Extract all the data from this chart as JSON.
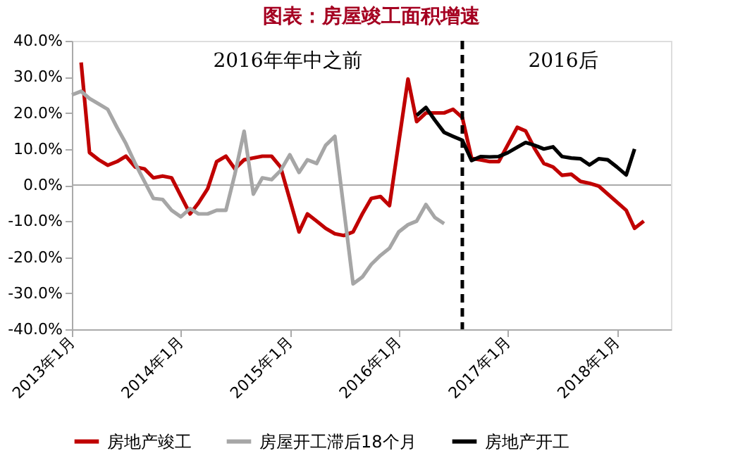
{
  "chart_data": {
    "type": "line",
    "title": "图表：房屋竣工面积增速",
    "xlim": [
      "2013-01",
      "2018-07"
    ],
    "xticks": [
      {
        "value": "2013-01",
        "label": "2013年1月"
      },
      {
        "value": "2014-01",
        "label": "2014年1月"
      },
      {
        "value": "2015-01",
        "label": "2015年1月"
      },
      {
        "value": "2016-01",
        "label": "2016年1月"
      },
      {
        "value": "2017-01",
        "label": "2017年1月"
      },
      {
        "value": "2018-01",
        "label": "2018年1月"
      }
    ],
    "ylim": [
      -40,
      40
    ],
    "yticks": [
      {
        "value": -40,
        "label": "-40.0%"
      },
      {
        "value": -30,
        "label": "-30.0%"
      },
      {
        "value": -20,
        "label": "-20.0%"
      },
      {
        "value": -10,
        "label": "-10.0%"
      },
      {
        "value": 0,
        "label": "0.0%"
      },
      {
        "value": 10,
        "label": "10.0%"
      },
      {
        "value": 20,
        "label": "20.0%"
      },
      {
        "value": 30,
        "label": "30.0%"
      },
      {
        "value": 40,
        "label": "40.0%"
      }
    ],
    "grid": false,
    "legend": "bottom",
    "line_style": "solid",
    "series": [
      {
        "name": "房地产竣工",
        "color": "#c00000",
        "x": [
          "2013-02",
          "2013-03",
          "2013-04",
          "2013-05",
          "2013-06",
          "2013-07",
          "2013-08",
          "2013-09",
          "2013-10",
          "2013-11",
          "2013-12",
          "2014-02",
          "2014-03",
          "2014-04",
          "2014-05",
          "2014-06",
          "2014-07",
          "2014-08",
          "2014-09",
          "2014-10",
          "2014-11",
          "2014-12",
          "2015-02",
          "2015-03",
          "2015-04",
          "2015-05",
          "2015-06",
          "2015-07",
          "2015-08",
          "2015-09",
          "2015-10",
          "2015-11",
          "2015-12",
          "2016-02",
          "2016-03",
          "2016-04",
          "2016-05",
          "2016-06",
          "2016-07",
          "2016-08",
          "2016-09",
          "2016-10",
          "2016-11",
          "2016-12",
          "2017-02",
          "2017-03",
          "2017-04",
          "2017-05",
          "2017-06",
          "2017-07",
          "2017-08",
          "2017-09",
          "2017-10",
          "2017-11",
          "2017-12",
          "2018-02",
          "2018-03",
          "2018-04"
        ],
        "values": [
          34,
          9,
          7,
          5.5,
          6.5,
          8,
          5,
          4.5,
          2,
          2.5,
          2,
          -8,
          -5,
          -1,
          6.5,
          8,
          4.5,
          7,
          7.5,
          8,
          8,
          5,
          -13,
          -8,
          -10,
          -12,
          -13.5,
          -14,
          -13,
          -8,
          -3.7,
          -3.2,
          -5.7,
          29.4,
          17.6,
          20,
          20,
          20,
          21,
          18.7,
          7.4,
          7,
          6.5,
          6.5,
          16,
          15,
          10,
          6,
          5,
          2.7,
          3,
          1,
          0.5,
          -0.3,
          -2.5,
          -7,
          -12,
          -10
        ]
      },
      {
        "name": "房屋开工滞后18个月",
        "color": "#a6a6a6",
        "x": [
          "2013-01",
          "2013-02",
          "2013-03",
          "2013-04",
          "2013-05",
          "2013-06",
          "2013-07",
          "2013-08",
          "2013-09",
          "2013-10",
          "2013-11",
          "2013-12",
          "2014-01",
          "2014-02",
          "2014-03",
          "2014-04",
          "2014-05",
          "2014-06",
          "2014-07",
          "2014-08",
          "2014-09",
          "2014-10",
          "2014-11",
          "2014-12",
          "2015-01",
          "2015-02",
          "2015-03",
          "2015-04",
          "2015-05",
          "2015-06",
          "2015-08",
          "2015-09",
          "2015-10",
          "2015-11",
          "2015-12",
          "2016-01",
          "2016-02",
          "2016-03",
          "2016-04",
          "2016-05",
          "2016-06"
        ],
        "values": [
          25,
          26,
          24,
          22.5,
          21,
          16,
          11.5,
          6,
          1,
          -3.7,
          -4,
          -7,
          -8.8,
          -6.5,
          -8,
          -8,
          -7,
          -7,
          3,
          14.9,
          -2.5,
          2,
          1.5,
          4,
          8.4,
          3.5,
          7,
          6,
          11,
          13.5,
          -27.4,
          -25.5,
          -22,
          -19.5,
          -17.5,
          -13,
          -11,
          -10,
          -5.4,
          -9,
          -10.7
        ]
      },
      {
        "name": "房地产开工",
        "color": "#000000",
        "x": [
          "2016-03",
          "2016-04",
          "2016-05",
          "2016-06",
          "2016-07",
          "2016-08",
          "2016-09",
          "2016-10",
          "2016-11",
          "2016-12",
          "2017-01",
          "2017-02",
          "2017-03",
          "2017-04",
          "2017-05",
          "2017-06",
          "2017-07",
          "2017-08",
          "2017-09",
          "2017-10",
          "2017-11",
          "2017-12",
          "2018-01",
          "2018-02",
          "2018-03"
        ],
        "values": [
          19.3,
          21.5,
          18,
          14.6,
          13.5,
          12.4,
          6.8,
          7.9,
          7.8,
          7.9,
          9,
          10.5,
          11.8,
          11,
          10,
          10.6,
          7.9,
          7.5,
          7.3,
          5.6,
          7.3,
          7,
          5,
          2.8,
          10
        ]
      }
    ],
    "ref_lines": [
      {
        "axis": "y",
        "value": 0,
        "color": "#aaaaaa",
        "line_style": "solid"
      },
      {
        "axis": "x",
        "value": "2016-08",
        "color": "#000000",
        "line_style": "dashed"
      }
    ],
    "annotations": [
      "2016年年中之前",
      "2016后"
    ]
  }
}
